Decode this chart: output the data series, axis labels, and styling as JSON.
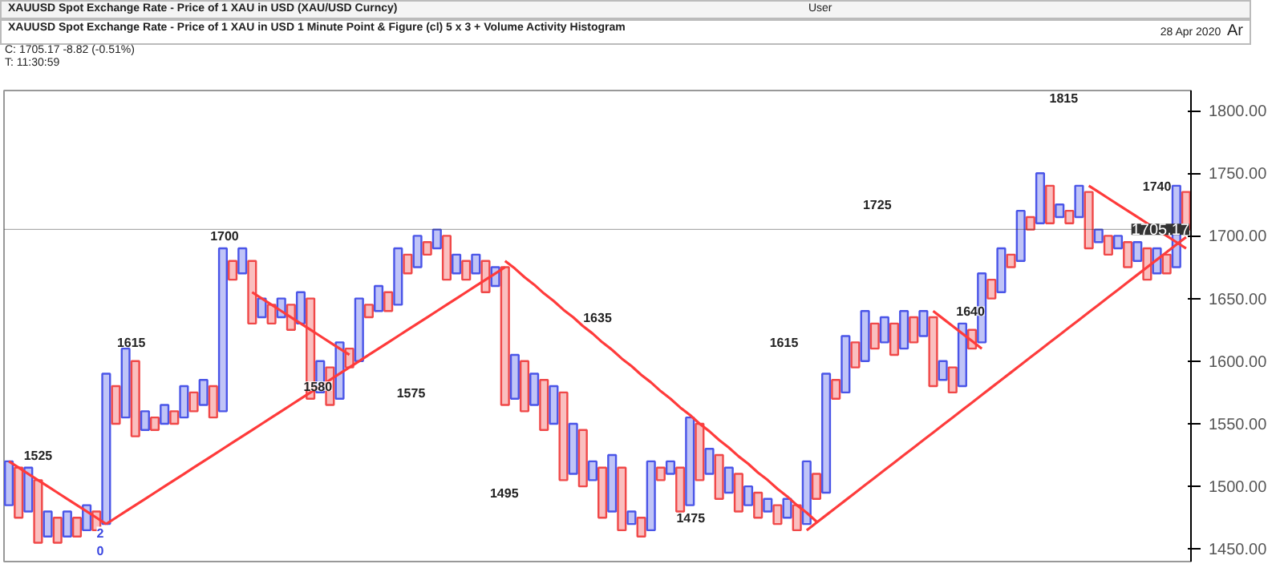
{
  "chart_data": {
    "type": "bar",
    "title": "XAUUSD Spot Exchange Rate - Price of 1 XAU in USD (XAU/USD Curncy)",
    "subtitle": "XAUUSD Spot Exchange Rate - Price of 1 XAU in USD 1 Minute Point & Figure (cl) 5 x 3 + Volume Activity Histogram",
    "y2label": "Ar",
    "annotations": [
      "User",
      "28 Apr 2020",
      "C: 1705.17  -8.82 (-0.51%)",
      "T: 11:30:59",
      {
        "text": "1525",
        "y": 1525
      },
      "2\n0",
      {
        "text": "1615",
        "y": 1615
      },
      {
        "text": "1700",
        "y": 1700
      },
      {
        "text": "1580",
        "y": 1580
      },
      {
        "text": "1575",
        "y": 1575
      },
      {
        "text": "1495",
        "y": 1495
      },
      {
        "text": "1635",
        "y": 1635
      },
      {
        "text": "1475",
        "y": 1475
      },
      {
        "text": "1615",
        "y": 1615
      },
      {
        "text": "1725",
        "y": 1725
      },
      {
        "text": "1640",
        "y": 1640
      },
      {
        "text": "1815",
        "y": 1810
      },
      {
        "text": "1740",
        "y": 1740
      }
    ],
    "categories": [
      null,
      null,
      null,
      null,
      null,
      null,
      null,
      null,
      null,
      null,
      null,
      null,
      null,
      null,
      null,
      null,
      null,
      null,
      null,
      null,
      null,
      null,
      null,
      null,
      null,
      null,
      null,
      null,
      null,
      null,
      null,
      null,
      null,
      null,
      null,
      null,
      null,
      null,
      null,
      null,
      null,
      null,
      null,
      null,
      null,
      null,
      null,
      null,
      null,
      null,
      null,
      null,
      null,
      null,
      null,
      null,
      null,
      null,
      null,
      null,
      null,
      null,
      null,
      null,
      null,
      null,
      null,
      null,
      null,
      null,
      null,
      null,
      null,
      null,
      null,
      null,
      null,
      null,
      null,
      null,
      null,
      null,
      null,
      null,
      null,
      null,
      null,
      null,
      null,
      null,
      null,
      null,
      null,
      null,
      null,
      null,
      null,
      null,
      null,
      null,
      null,
      null,
      null,
      null,
      null,
      null,
      null,
      null,
      null,
      null,
      null,
      null,
      null,
      null,
      null,
      null,
      null,
      null,
      null,
      null,
      null,
      null
    ],
    "ylim": [
      1440,
      1816
    ],
    "yticks": [
      {
        "value": 1450,
        "label": "1450.00"
      },
      {
        "value": 1500,
        "label": "1500.00"
      },
      {
        "value": 1550,
        "label": "1550.00"
      },
      {
        "value": 1600,
        "label": "1600.00"
      },
      {
        "value": 1650,
        "label": "1650.00"
      },
      {
        "value": 1700,
        "label": "1700.00"
      },
      {
        "value": 1750,
        "label": "1750.00"
      },
      {
        "value": 1800,
        "label": "1800.00"
      }
    ],
    "tick_labels": "y",
    "grid": false,
    "ref_lines": [
      {
        "axis": "y",
        "value": 1705.17,
        "label": "1705.17",
        "color": "#333333"
      }
    ],
    "series": [
      {
        "base": [
          1485,
          1475,
          1480,
          1455,
          1460,
          1455,
          1460,
          1460,
          1465,
          1465,
          1470,
          1550,
          1555,
          1540,
          1545,
          1545,
          1550,
          1550,
          1555,
          1560,
          1565,
          1555,
          1560,
          1665,
          1670,
          1630,
          1635,
          1630,
          1635,
          1625,
          1630,
          1570,
          1575,
          1565,
          1570,
          1595,
          1600,
          1635,
          1640,
          1640,
          1645,
          1670,
          1675,
          1685,
          1690,
          1665,
          1670,
          1665,
          1670,
          1655,
          1660,
          1565,
          1570,
          1560,
          1565,
          1545,
          1550,
          1505,
          1510,
          1500,
          1505,
          1475,
          1480,
          1465,
          1470,
          1460,
          1465,
          1505,
          1510,
          1480,
          1485,
          1505,
          1510,
          1490,
          1495,
          1480,
          1485,
          1475,
          1480,
          1470,
          1475,
          1465,
          1470,
          1490,
          1495,
          1570,
          1575,
          1595,
          1600,
          1610,
          1615,
          1605,
          1610,
          1615,
          1620,
          1580,
          1585,
          1575,
          1580,
          1610,
          1615,
          1650,
          1655,
          1675,
          1680,
          1705,
          1710,
          1710,
          1715,
          1710,
          1715,
          1690,
          1695,
          1685,
          1690,
          1675,
          1680,
          1665,
          1670,
          1670,
          1675,
          1705
        ],
        "values": [
          35,
          40,
          35,
          50,
          20,
          20,
          20,
          15,
          20,
          15,
          120,
          30,
          55,
          60,
          15,
          10,
          15,
          10,
          25,
          15,
          20,
          25,
          130,
          15,
          20,
          50,
          15,
          15,
          15,
          20,
          25,
          80,
          25,
          30,
          45,
          15,
          50,
          10,
          20,
          15,
          45,
          15,
          25,
          10,
          15,
          35,
          15,
          15,
          15,
          25,
          15,
          110,
          35,
          40,
          25,
          40,
          30,
          70,
          40,
          45,
          15,
          40,
          45,
          50,
          10,
          15,
          55,
          10,
          10,
          35,
          70,
          45,
          20,
          35,
          20,
          30,
          15,
          20,
          10,
          15,
          15,
          20,
          50,
          20,
          95,
          15,
          45,
          20,
          40,
          20,
          20,
          25,
          30,
          20,
          20,
          55,
          15,
          20,
          50,
          15,
          55,
          15,
          35,
          10,
          40,
          10,
          40,
          30,
          10,
          10,
          25,
          45,
          10,
          15,
          10,
          20,
          15,
          25,
          20,
          15,
          65,
          30
        ],
        "colors": [
          "#4a55e8",
          "#f04848",
          "#4a55e8",
          "#f04848",
          "#4a55e8",
          "#f04848",
          "#4a55e8",
          "#f04848",
          "#4a55e8",
          "#f04848",
          "#4a55e8",
          "#f04848",
          "#4a55e8",
          "#f04848",
          "#4a55e8",
          "#f04848",
          "#4a55e8",
          "#f04848",
          "#4a55e8",
          "#f04848",
          "#4a55e8",
          "#f04848",
          "#4a55e8",
          "#f04848",
          "#4a55e8",
          "#f04848",
          "#4a55e8",
          "#f04848",
          "#4a55e8",
          "#f04848",
          "#4a55e8",
          "#f04848",
          "#4a55e8",
          "#f04848",
          "#4a55e8",
          "#f04848",
          "#4a55e8",
          "#f04848",
          "#4a55e8",
          "#f04848",
          "#4a55e8",
          "#f04848",
          "#4a55e8",
          "#f04848",
          "#4a55e8",
          "#f04848",
          "#4a55e8",
          "#f04848",
          "#4a55e8",
          "#f04848",
          "#4a55e8",
          "#f04848",
          "#4a55e8",
          "#f04848",
          "#4a55e8",
          "#f04848",
          "#4a55e8",
          "#f04848",
          "#4a55e8",
          "#f04848",
          "#4a55e8",
          "#f04848",
          "#4a55e8",
          "#f04848",
          "#4a55e8",
          "#f04848",
          "#4a55e8",
          "#f04848",
          "#4a55e8",
          "#f04848",
          "#4a55e8",
          "#f04848",
          "#4a55e8",
          "#f04848",
          "#4a55e8",
          "#f04848",
          "#4a55e8",
          "#f04848",
          "#4a55e8",
          "#f04848",
          "#4a55e8",
          "#f04848",
          "#4a55e8",
          "#f04848",
          "#4a55e8",
          "#f04848",
          "#4a55e8",
          "#f04848",
          "#4a55e8",
          "#f04848",
          "#4a55e8",
          "#f04848",
          "#4a55e8",
          "#f04848",
          "#4a55e8",
          "#f04848",
          "#4a55e8",
          "#f04848",
          "#4a55e8",
          "#f04848",
          "#4a55e8",
          "#f04848",
          "#4a55e8",
          "#f04848",
          "#4a55e8",
          "#f04848",
          "#4a55e8",
          "#f04848",
          "#4a55e8",
          "#f04848",
          "#4a55e8",
          "#f04848",
          "#4a55e8",
          "#f04848",
          "#4a55e8",
          "#f04848",
          "#4a55e8",
          "#f04848",
          "#4a55e8",
          "#f04848",
          "#4a55e8",
          "#f04848"
        ]
      },
      {
        "type": "line",
        "color": "#ff3b3b",
        "values": [
          1520,
          1515,
          1510,
          1505,
          1500,
          1495,
          1490,
          1485,
          1480,
          1475,
          1470,
          null,
          null,
          null,
          null,
          null,
          null,
          null,
          null,
          null,
          null,
          null,
          null,
          null,
          null,
          null,
          null,
          null,
          null,
          null,
          null,
          null,
          null,
          null,
          null,
          null,
          null,
          null,
          null,
          null,
          null,
          null,
          null,
          null,
          null,
          null,
          null,
          null,
          null,
          null,
          null,
          1680,
          1674,
          1667,
          1661,
          1654,
          1648,
          1641,
          1635,
          1628,
          1622,
          1615,
          1609,
          1602,
          1596,
          1589,
          1583,
          1576,
          1570,
          1563,
          1557,
          1550,
          1544,
          1537,
          1531,
          1524,
          1518,
          1511,
          1505,
          1498,
          1492,
          1485,
          1479,
          1472,
          null,
          null,
          null,
          null,
          null,
          null,
          null,
          null,
          null,
          null,
          null,
          1640,
          1634,
          1628,
          1622,
          1616,
          1610,
          null,
          null,
          null,
          null,
          null,
          null,
          null,
          null,
          null,
          null,
          null,
          null,
          null,
          null,
          null,
          null,
          null,
          null,
          null,
          null,
          null
        ]
      },
      {
        "type": "line",
        "color": "#fe3a3a",
        "values": [
          null,
          null,
          null,
          null,
          null,
          null,
          null,
          null,
          null,
          null,
          1470,
          1475,
          1480,
          1485,
          1490,
          1495,
          1500,
          1505,
          1510,
          1515,
          1520,
          1525,
          1530,
          1535,
          1540,
          1545,
          1550,
          1555,
          1560,
          1565,
          1570,
          1575,
          1580,
          1585,
          1590,
          1595,
          1600,
          1605,
          1610,
          1615,
          1620,
          1625,
          1630,
          1635,
          1640,
          1645,
          1650,
          1655,
          1660,
          1665,
          1670,
          1675,
          null,
          null,
          null,
          null,
          null,
          null,
          null,
          null,
          null,
          null,
          null,
          null,
          null,
          null,
          null,
          null,
          null,
          null,
          null,
          null,
          null,
          null,
          null,
          null,
          null,
          null,
          null,
          null,
          null,
          null,
          null,
          null,
          null,
          null,
          null,
          null,
          null,
          null,
          null,
          null,
          null,
          null,
          null,
          null,
          null,
          null,
          null,
          null,
          null,
          null,
          null,
          null,
          null,
          null,
          null,
          null,
          null,
          null,
          null,
          1740,
          1735,
          1730,
          1725,
          1720,
          1715,
          1710,
          1705,
          1700,
          1695,
          1690
        ]
      },
      {
        "type": "line",
        "color": "#fd3c3c",
        "values": [
          null,
          null,
          null,
          null,
          null,
          null,
          null,
          null,
          null,
          null,
          null,
          null,
          null,
          null,
          null,
          null,
          null,
          null,
          null,
          null,
          null,
          null,
          null,
          null,
          null,
          1655,
          1650,
          1645,
          1640,
          1635,
          1630,
          1625,
          1620,
          1615,
          1610,
          1605,
          null,
          null,
          null,
          null,
          null,
          null,
          null,
          null,
          null,
          null,
          null,
          null,
          null,
          null,
          null,
          null,
          null,
          null,
          null,
          null,
          null,
          null,
          null,
          null,
          null,
          null,
          null,
          null,
          null,
          null,
          null,
          null,
          null,
          null,
          null,
          null,
          null,
          null,
          null,
          null,
          null,
          null,
          null,
          null,
          null,
          null,
          1465,
          1471,
          1477,
          1483,
          1489,
          1495,
          1501,
          1507,
          1513,
          1519,
          1525,
          1531,
          1537,
          1543,
          1549,
          1555,
          1561,
          1567,
          1573,
          1579,
          1585,
          1591,
          1597,
          1603,
          1609,
          1615,
          1621,
          1627,
          1633,
          1639,
          1645,
          1651,
          1657,
          1663,
          1669,
          1675,
          1681,
          1687,
          1693,
          1699
        ]
      }
    ]
  }
}
